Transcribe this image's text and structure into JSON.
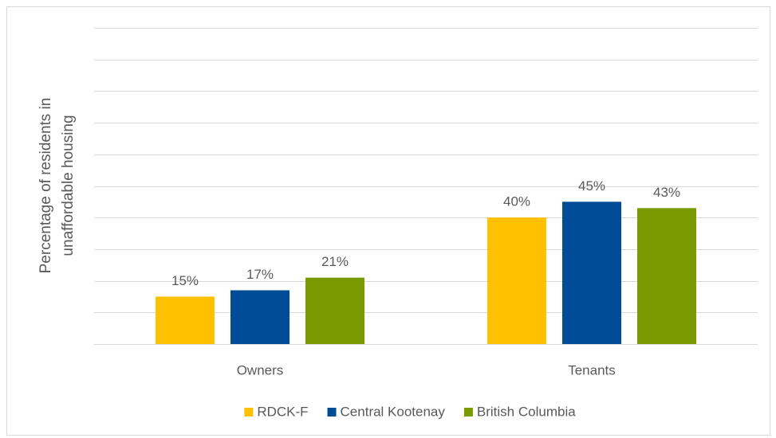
{
  "chart_data": {
    "type": "bar",
    "ylabel": [
      "Percentage of residents in",
      "unaffordable housing"
    ],
    "categories": [
      "Owners",
      "Tenants"
    ],
    "series": [
      {
        "name": "RDCK-F",
        "color": "#FFC000",
        "values": [
          15,
          40
        ],
        "value_labels": [
          "15%",
          "40%"
        ]
      },
      {
        "name": "Central Kootenay",
        "color": "#004C97",
        "values": [
          17,
          45
        ],
        "value_labels": [
          "17%",
          "45%"
        ]
      },
      {
        "name": "British Columbia",
        "color": "#7A9A01",
        "values": [
          21,
          43
        ],
        "value_labels": [
          "21%",
          "43%"
        ]
      }
    ],
    "ylim": [
      0,
      100
    ],
    "yticks": [
      0,
      10,
      20,
      30,
      40,
      50,
      60,
      70,
      80,
      90,
      100
    ],
    "grid": true,
    "legend": "bottom"
  }
}
